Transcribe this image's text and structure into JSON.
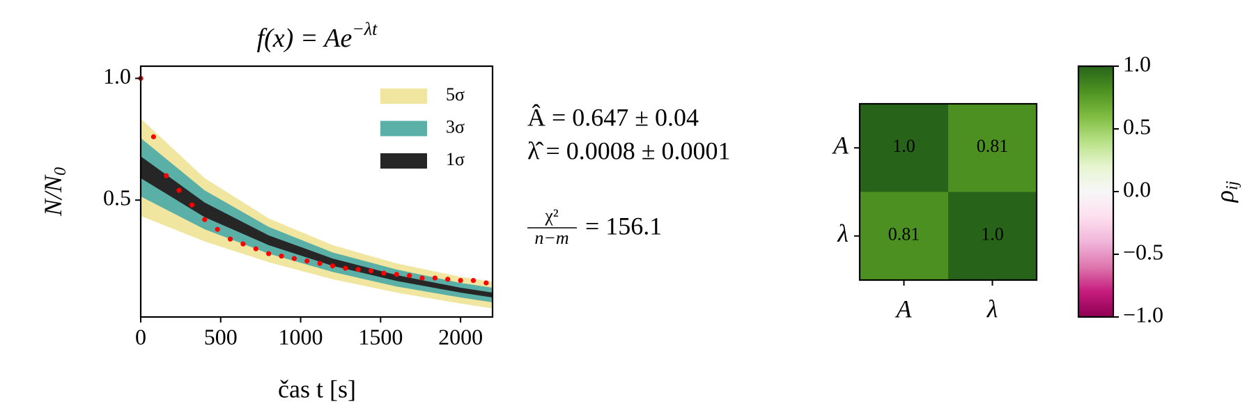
{
  "chart_data": [
    {
      "type": "scatter",
      "title": {
        "base": "f(x) = Ae",
        "sup": "−λt"
      },
      "xlabel": "čas t [s]",
      "ylabel": {
        "base": "N/N",
        "sub": "0"
      },
      "x": [
        0,
        80,
        160,
        240,
        320,
        400,
        480,
        560,
        640,
        720,
        800,
        880,
        960,
        1040,
        1120,
        1200,
        1280,
        1360,
        1440,
        1520,
        1600,
        1680,
        1760,
        1840,
        1920,
        2000,
        2080,
        2160
      ],
      "values": [
        1.0,
        0.76,
        0.6,
        0.54,
        0.48,
        0.42,
        0.38,
        0.34,
        0.32,
        0.3,
        0.28,
        0.27,
        0.26,
        0.25,
        0.24,
        0.23,
        0.22,
        0.215,
        0.21,
        0.2,
        0.195,
        0.19,
        0.18,
        0.18,
        0.175,
        0.17,
        0.17,
        0.16
      ],
      "color": "#ff0000",
      "bands": {
        "x": [
          0,
          400,
          800,
          1200,
          1600,
          2000,
          2200
        ],
        "series": [
          {
            "name": "5σ",
            "color": "#f0e6a0",
            "lower": [
              0.435,
              0.33,
              0.245,
              0.175,
              0.12,
              0.075,
              0.055
            ],
            "upper": [
              0.835,
              0.59,
              0.425,
              0.315,
              0.24,
              0.185,
              0.165
            ]
          },
          {
            "name": "3σ",
            "color": "#5ab0a6",
            "lower": [
              0.515,
              0.38,
              0.28,
              0.205,
              0.145,
              0.1,
              0.08
            ],
            "upper": [
              0.755,
              0.54,
              0.39,
              0.285,
              0.215,
              0.16,
              0.14
            ]
          },
          {
            "name": "1σ",
            "color": "#262626",
            "lower": [
              0.59,
              0.43,
              0.315,
              0.23,
              0.168,
              0.12,
              0.1
            ],
            "upper": [
              0.68,
              0.49,
              0.355,
              0.26,
              0.192,
              0.14,
              0.12
            ]
          }
        ]
      },
      "legend": "upper right",
      "xlim": [
        0,
        2200
      ],
      "ylim": [
        0.02,
        1.05
      ],
      "xticks": [
        0,
        500,
        1000,
        1500,
        2000
      ],
      "yticks": [
        {
          "value": 0.5,
          "label": "0.5"
        },
        {
          "value": 1,
          "label": "1.0"
        }
      ],
      "annotations": {
        "A": "Â = 0.647 ± 0.04",
        "lambda": "λ̂ = 0.0008 ± 0.0001",
        "chi_num": "χ²",
        "chi_den": "n−m",
        "chi_value": "= 156.1"
      }
    },
    {
      "type": "heatmap",
      "categories": [
        "A",
        "λ"
      ],
      "values": [
        [
          1.0,
          0.81
        ],
        [
          0.81,
          1.0
        ]
      ],
      "value_labels": [
        [
          "1.0",
          "0.81"
        ],
        [
          "0.81",
          "1.0"
        ]
      ],
      "colormap": [
        "#8e0152",
        "#c51b7d",
        "#de77ae",
        "#f1b6da",
        "#fde0ef",
        "#f7f7f7",
        "#e6f5d0",
        "#b8e186",
        "#7fbc41",
        "#4d9221",
        "#276419"
      ],
      "clim": [
        -1,
        1
      ],
      "colorbar_ticks": [
        {
          "value": -1,
          "label": "−1.0"
        },
        {
          "value": -0.5,
          "label": "−0.5"
        },
        {
          "value": 0,
          "label": "0.0"
        },
        {
          "value": 0.5,
          "label": "0.5"
        },
        {
          "value": 1,
          "label": "1.0"
        }
      ],
      "colorbar_label": {
        "base": "ρ",
        "sub": "ij"
      }
    }
  ]
}
